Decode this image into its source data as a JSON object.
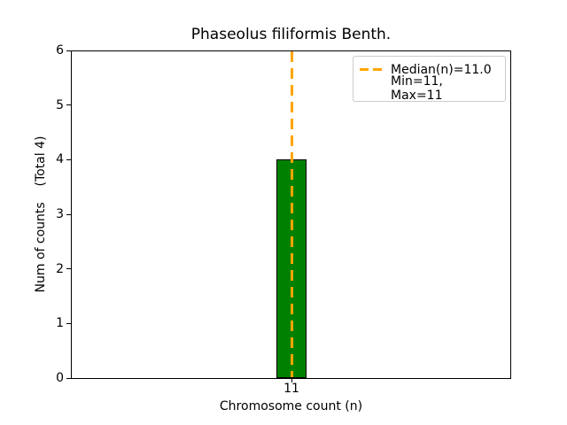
{
  "chart_data": {
    "type": "bar",
    "title": "Phaseolus filiformis Benth.",
    "xlabel": "Chromosome count (n)",
    "ylabel": "Num of counts    (Total 4)",
    "categories": [
      "11"
    ],
    "values": [
      4
    ],
    "total": 4,
    "ylim": [
      0,
      6
    ],
    "yticks": [
      "0",
      "1",
      "2",
      "3",
      "4",
      "5",
      "6"
    ],
    "xticks": [
      "11"
    ],
    "grid": false,
    "bar_color": "#008000",
    "bar_edge_color": "#000000",
    "median_line": {
      "x": 11.0,
      "color": "#ffa500",
      "style": "dashed"
    },
    "stats": {
      "median": 11.0,
      "min": 11,
      "max": 11
    },
    "legend": {
      "position": "upper-right",
      "entries": [
        {
          "label": "Median(n)=11.0",
          "marker": "orange-dashed-line"
        },
        {
          "label": "Min=11, Max=11",
          "marker": "none"
        }
      ]
    }
  }
}
